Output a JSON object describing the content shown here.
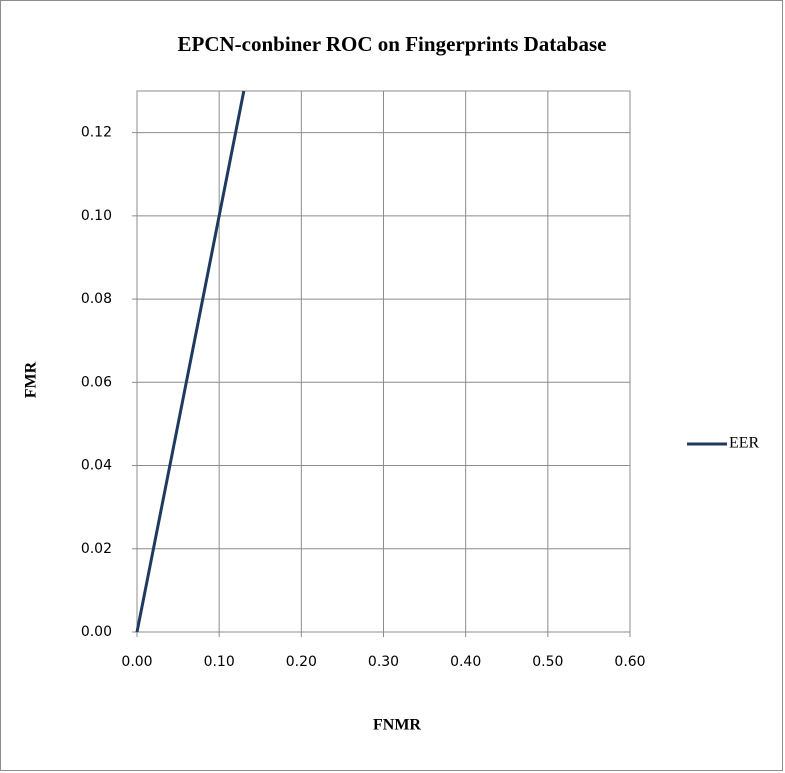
{
  "chart_data": {
    "type": "line",
    "title": "EPCN-conbiner ROC on Fingerprints Database",
    "xlabel": "FNMR",
    "ylabel": "FMR",
    "x": [
      0,
      0.13
    ],
    "series": [
      {
        "name": "EER",
        "color": "#1f3a60",
        "values": [
          0,
          0.13
        ]
      }
    ],
    "xlim": [
      0,
      0.6
    ],
    "xticks": [
      {
        "value": 0,
        "label": "0.00"
      },
      {
        "value": 0.1,
        "label": "0.10"
      },
      {
        "value": 0.2,
        "label": "0.20"
      },
      {
        "value": 0.3,
        "label": "0.30"
      },
      {
        "value": 0.4,
        "label": "0.40"
      },
      {
        "value": 0.5,
        "label": "0.50"
      },
      {
        "value": 0.6,
        "label": "0.60"
      }
    ],
    "ylim": [
      0,
      0.13
    ],
    "yticks": [
      {
        "value": 0,
        "label": "0.00"
      },
      {
        "value": 0.02,
        "label": "0.02"
      },
      {
        "value": 0.04,
        "label": "0.04"
      },
      {
        "value": 0.06,
        "label": "0.06"
      },
      {
        "value": 0.08,
        "label": "0.08"
      },
      {
        "value": 0.1,
        "label": "0.10"
      },
      {
        "value": 0.12,
        "label": "0.12"
      }
    ],
    "grid": true,
    "legend": "right"
  }
}
